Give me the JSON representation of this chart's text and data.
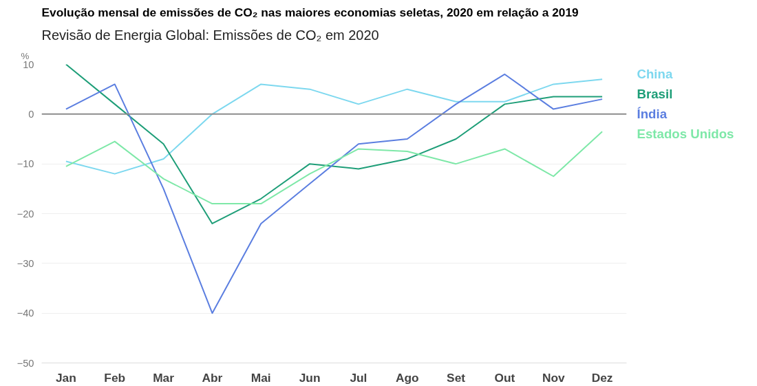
{
  "chart_data": {
    "type": "line",
    "title": "Evolução mensal de emissões de CO₂ nas maiores economias seletas, 2020 em relação a 2019",
    "subtitle": "Revisão de Energia Global: Emissões de CO₂ em 2020",
    "ylabel": "%",
    "categories": [
      "Jan",
      "Feb",
      "Mar",
      "Abr",
      "Mai",
      "Jun",
      "Jul",
      "Ago",
      "Set",
      "Out",
      "Nov",
      "Dez"
    ],
    "series": [
      {
        "name": "China",
        "color": "#7dd8ef",
        "values": [
          -9.5,
          -12,
          -9,
          0,
          6,
          5,
          2,
          5,
          2.5,
          2.5,
          6,
          7
        ]
      },
      {
        "name": "Brasil",
        "color": "#1e9e78",
        "values": [
          10,
          2,
          -6,
          -22,
          -17,
          -10,
          -11,
          -9,
          -5,
          2,
          3.5,
          3.5
        ]
      },
      {
        "name": "Índia",
        "color": "#5b7ee0",
        "values": [
          1,
          6,
          -15,
          -40,
          -22,
          -14,
          -6,
          -5,
          2,
          8,
          1,
          3
        ]
      },
      {
        "name": "Estados Unidos",
        "color": "#7ee8a8",
        "values": [
          -10.5,
          -5.5,
          -13,
          -18,
          -18,
          -12,
          -7,
          -7.5,
          -10,
          -7,
          -12.5,
          -3.5
        ]
      }
    ],
    "ylim": [
      -50,
      10
    ],
    "yticks": [
      -50,
      -40,
      -30,
      -20,
      -10,
      0,
      10
    ],
    "grid": "y",
    "marker": "none",
    "line_style": "solid",
    "ref_lines": [
      {
        "axis": "y",
        "value": 0,
        "color": "#8c8c8c"
      }
    ]
  }
}
